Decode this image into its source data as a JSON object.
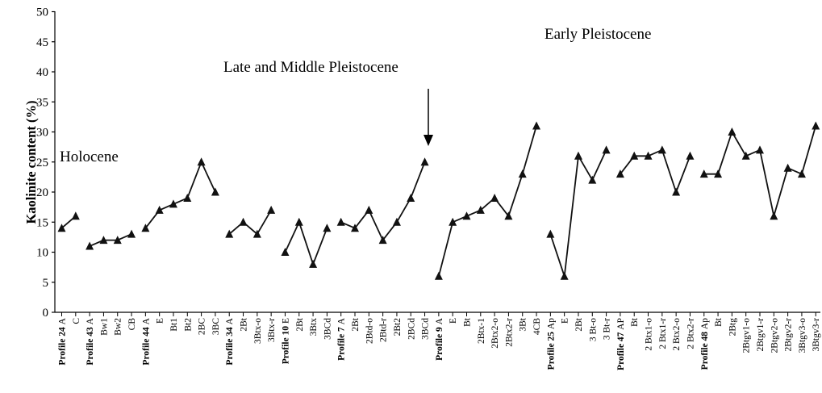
{
  "chart_data": {
    "type": "line",
    "title": "",
    "xlabel": "",
    "ylabel": "Kaolinite content  (%)",
    "ylim": [
      0,
      50
    ],
    "yticks": [
      0,
      5,
      10,
      15,
      20,
      25,
      30,
      35,
      40,
      45,
      50
    ],
    "grid": false,
    "legend": "none",
    "line_color": "#111111",
    "marker": "triangle",
    "annotations": [
      {
        "text": "Holocene"
      },
      {
        "text": "Late and Middle Pleistocene"
      },
      {
        "text": "Early Pleistocene"
      }
    ],
    "arrow_target": {
      "category": "3BCd",
      "profile": "Profile 7",
      "value": 25
    },
    "categories": [
      {
        "profile": "Profile 24",
        "horizon": "A"
      },
      {
        "profile": "",
        "horizon": "C"
      },
      {
        "profile": "Profile 43",
        "horizon": "A"
      },
      {
        "profile": "",
        "horizon": "Bw1"
      },
      {
        "profile": "",
        "horizon": "Bw2"
      },
      {
        "profile": "",
        "horizon": "CB"
      },
      {
        "profile": "Profile 44",
        "horizon": "A"
      },
      {
        "profile": "",
        "horizon": "E"
      },
      {
        "profile": "",
        "horizon": "Bt1"
      },
      {
        "profile": "",
        "horizon": "Bt2"
      },
      {
        "profile": "",
        "horizon": "2BC"
      },
      {
        "profile": "",
        "horizon": "3BC"
      },
      {
        "profile": "Profile 34",
        "horizon": "A"
      },
      {
        "profile": "",
        "horizon": "2Bt"
      },
      {
        "profile": "",
        "horizon": "3Btx-o"
      },
      {
        "profile": "",
        "horizon": "3Btx-r"
      },
      {
        "profile": "Profile 10",
        "horizon": "E"
      },
      {
        "profile": "",
        "horizon": "2Bt"
      },
      {
        "profile": "",
        "horizon": "3Btx"
      },
      {
        "profile": "",
        "horizon": "3BCd"
      },
      {
        "profile": "Profile 7",
        "horizon": "A"
      },
      {
        "profile": "",
        "horizon": "2Bt"
      },
      {
        "profile": "",
        "horizon": "2Btd-o"
      },
      {
        "profile": "",
        "horizon": "2Btd-r"
      },
      {
        "profile": "",
        "horizon": "2Bt2"
      },
      {
        "profile": "",
        "horizon": "2BCd"
      },
      {
        "profile": "",
        "horizon": "3BCd"
      },
      {
        "profile": "Profile 9",
        "horizon": "A"
      },
      {
        "profile": "",
        "horizon": "E"
      },
      {
        "profile": "",
        "horizon": "Bt"
      },
      {
        "profile": "",
        "horizon": "2Btx-1"
      },
      {
        "profile": "",
        "horizon": "2Btx2-o"
      },
      {
        "profile": "",
        "horizon": "2Btx2-r"
      },
      {
        "profile": "",
        "horizon": "3Bt"
      },
      {
        "profile": "",
        "horizon": "4CB"
      },
      {
        "profile": "Profile 25",
        "horizon": "Ap"
      },
      {
        "profile": "",
        "horizon": "E"
      },
      {
        "profile": "",
        "horizon": "2Bt"
      },
      {
        "profile": "",
        "horizon": "3 Bt-o"
      },
      {
        "profile": "",
        "horizon": "3 Bt-r"
      },
      {
        "profile": "Profile 47",
        "horizon": "AP"
      },
      {
        "profile": "",
        "horizon": "Bt"
      },
      {
        "profile": "",
        "horizon": "2 Btx1-o"
      },
      {
        "profile": "",
        "horizon": "2 Btx1-r"
      },
      {
        "profile": "",
        "horizon": "2 Btx2-o"
      },
      {
        "profile": "",
        "horizon": "2 Btx2-r"
      },
      {
        "profile": "Profile 48",
        "horizon": "Ap"
      },
      {
        "profile": "",
        "horizon": "Bt"
      },
      {
        "profile": "",
        "horizon": "2Btg"
      },
      {
        "profile": "",
        "horizon": "2Btgv1-o"
      },
      {
        "profile": "",
        "horizon": "2Btgv1-r"
      },
      {
        "profile": "",
        "horizon": "2Btgv2-o"
      },
      {
        "profile": "",
        "horizon": "2Btgv2-r"
      },
      {
        "profile": "",
        "horizon": "3Btgv3-o"
      },
      {
        "profile": "",
        "horizon": "3Btgv3-r"
      }
    ],
    "segments": [
      {
        "start": 0,
        "values": [
          14,
          16
        ]
      },
      {
        "start": 2,
        "values": [
          11,
          12,
          12,
          13
        ]
      },
      {
        "start": 6,
        "values": [
          14,
          17,
          18,
          19,
          25,
          20
        ]
      },
      {
        "start": 12,
        "values": [
          13,
          15,
          13,
          17
        ]
      },
      {
        "start": 16,
        "values": [
          10,
          15,
          8,
          14
        ]
      },
      {
        "start": 20,
        "values": [
          15,
          14,
          17,
          12,
          15,
          19,
          25
        ]
      },
      {
        "start": 27,
        "values": [
          6,
          15,
          16,
          17,
          19,
          16,
          23,
          31
        ]
      },
      {
        "start": 35,
        "values": [
          13,
          6,
          26,
          22,
          27
        ]
      },
      {
        "start": 40,
        "values": [
          23,
          26,
          26,
          27,
          20,
          26
        ]
      },
      {
        "start": 46,
        "values": [
          23,
          23,
          30,
          26,
          27,
          16,
          24,
          23,
          31
        ]
      }
    ]
  }
}
